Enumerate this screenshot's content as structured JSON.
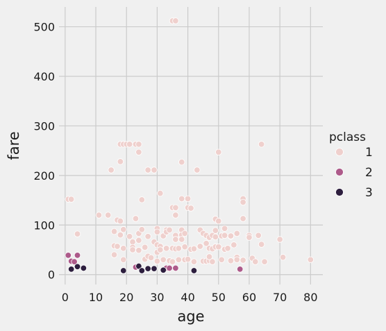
{
  "chart_data": {
    "type": "scatter",
    "title": "",
    "xlabel": "age",
    "ylabel": "fare",
    "xlim": [
      -2,
      84
    ],
    "ylim": [
      -20,
      540
    ],
    "xticks": [
      0,
      10,
      20,
      30,
      40,
      50,
      60,
      70,
      80
    ],
    "yticks": [
      0,
      100,
      200,
      300,
      400,
      500
    ],
    "grid": true,
    "legend": {
      "title": "pclass",
      "placement": "right",
      "entries": [
        {
          "label": "1",
          "color": "#efd0cd"
        },
        {
          "label": "2",
          "color": "#ad5a8a"
        },
        {
          "label": "3",
          "color": "#2d1e3e"
        }
      ]
    },
    "series": [
      {
        "name": "1",
        "color": "#efd0cd",
        "points": [
          [
            1,
            152
          ],
          [
            2,
            152
          ],
          [
            4,
            82
          ],
          [
            11,
            120
          ],
          [
            14,
            120
          ],
          [
            15,
            211
          ],
          [
            16,
            87
          ],
          [
            16,
            58
          ],
          [
            16,
            40
          ],
          [
            17,
            110
          ],
          [
            17,
            57
          ],
          [
            18,
            263
          ],
          [
            18,
            108
          ],
          [
            18,
            228
          ],
          [
            18,
            80
          ],
          [
            19,
            263
          ],
          [
            19,
            91
          ],
          [
            19,
            53
          ],
          [
            19,
            30
          ],
          [
            20,
            263
          ],
          [
            21,
            263
          ],
          [
            21,
            77
          ],
          [
            22,
            66
          ],
          [
            22,
            55
          ],
          [
            22,
            50
          ],
          [
            23,
            113
          ],
          [
            23,
            263
          ],
          [
            24,
            263
          ],
          [
            24,
            247
          ],
          [
            24,
            83
          ],
          [
            24,
            69
          ],
          [
            24,
            49
          ],
          [
            25,
            151
          ],
          [
            25,
            91
          ],
          [
            26,
            31
          ],
          [
            26,
            55
          ],
          [
            27,
            211
          ],
          [
            27,
            77
          ],
          [
            27,
            37
          ],
          [
            28,
            34
          ],
          [
            29,
            211
          ],
          [
            29,
            66
          ],
          [
            30,
            93
          ],
          [
            30,
            86
          ],
          [
            30,
            60
          ],
          [
            30,
            45
          ],
          [
            30,
            27
          ],
          [
            31,
            164
          ],
          [
            31,
            57
          ],
          [
            31,
            50
          ],
          [
            32,
            78
          ],
          [
            32,
            30
          ],
          [
            33,
            90
          ],
          [
            33,
            53
          ],
          [
            33,
            86
          ],
          [
            34,
            90
          ],
          [
            34,
            28
          ],
          [
            35,
            512
          ],
          [
            35,
            135
          ],
          [
            35,
            53
          ],
          [
            35,
            26
          ],
          [
            36,
            512
          ],
          [
            36,
            135
          ],
          [
            36,
            120
          ],
          [
            36,
            79
          ],
          [
            36,
            71
          ],
          [
            36,
            52
          ],
          [
            37,
            53
          ],
          [
            37,
            30
          ],
          [
            38,
            227
          ],
          [
            38,
            153
          ],
          [
            38,
            90
          ],
          [
            38,
            80
          ],
          [
            38,
            71
          ],
          [
            39,
            56
          ],
          [
            39,
            83
          ],
          [
            39,
            30
          ],
          [
            40,
            153
          ],
          [
            40,
            135
          ],
          [
            40,
            31
          ],
          [
            41,
            134
          ],
          [
            41,
            51
          ],
          [
            42,
            52
          ],
          [
            42,
            26
          ],
          [
            43,
            211
          ],
          [
            44,
            90
          ],
          [
            44,
            57
          ],
          [
            45,
            83
          ],
          [
            45,
            27
          ],
          [
            46,
            79
          ],
          [
            46,
            63
          ],
          [
            46,
            27
          ],
          [
            47,
            75
          ],
          [
            47,
            53
          ],
          [
            47,
            28
          ],
          [
            47,
            36
          ],
          [
            48,
            79
          ],
          [
            48,
            52
          ],
          [
            48,
            26
          ],
          [
            49,
            112
          ],
          [
            49,
            89
          ],
          [
            49,
            56
          ],
          [
            49,
            76
          ],
          [
            50,
            247
          ],
          [
            50,
            108
          ],
          [
            50,
            56
          ],
          [
            51,
            78
          ],
          [
            51,
            30
          ],
          [
            52,
            93
          ],
          [
            52,
            79
          ],
          [
            52,
            51
          ],
          [
            53,
            53
          ],
          [
            54,
            77
          ],
          [
            54,
            78
          ],
          [
            54,
            28
          ],
          [
            55,
            60
          ],
          [
            56,
            83
          ],
          [
            56,
            35
          ],
          [
            56,
            30
          ],
          [
            58,
            153
          ],
          [
            58,
            146
          ],
          [
            58,
            113
          ],
          [
            58,
            29
          ],
          [
            60,
            79
          ],
          [
            60,
            75
          ],
          [
            61,
            33
          ],
          [
            62,
            26
          ],
          [
            63,
            79
          ],
          [
            64,
            263
          ],
          [
            64,
            61
          ],
          [
            65,
            26
          ],
          [
            70,
            71
          ],
          [
            71,
            35
          ],
          [
            80,
            30
          ]
        ]
      },
      {
        "name": "2",
        "color": "#ad5a8a",
        "points": [
          [
            1,
            39
          ],
          [
            2,
            27
          ],
          [
            3,
            26
          ],
          [
            4,
            39
          ],
          [
            23,
            15
          ],
          [
            33,
            13
          ],
          [
            34,
            13
          ],
          [
            36,
            13
          ],
          [
            57,
            11
          ]
        ]
      },
      {
        "name": "3",
        "color": "#2d1e3e",
        "points": [
          [
            2,
            11
          ],
          [
            4,
            16
          ],
          [
            6,
            13
          ],
          [
            19,
            8
          ],
          [
            24,
            17
          ],
          [
            25,
            8
          ],
          [
            27,
            12
          ],
          [
            29,
            12
          ],
          [
            32,
            9
          ],
          [
            42,
            8
          ]
        ]
      }
    ]
  }
}
